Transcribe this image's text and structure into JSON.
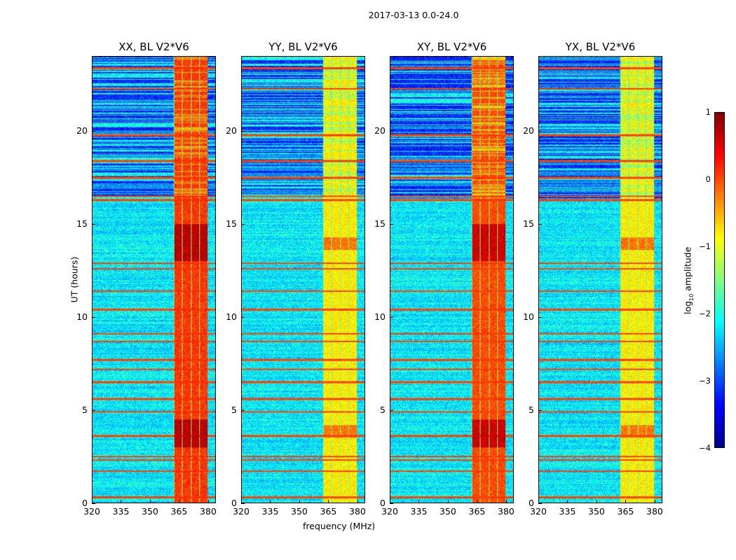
{
  "chart_data": {
    "type": "heatmap",
    "title": "2017-03-13 0.0-24.0",
    "xlabel": "frequency (MHz)",
    "ylabel": "UT (hours)",
    "xlim": [
      320,
      384
    ],
    "ylim": [
      0,
      24
    ],
    "xticks": [
      "320",
      "335",
      "350",
      "365",
      "380"
    ],
    "yticks": [
      "0",
      "5",
      "10",
      "15",
      "20"
    ],
    "colorbar": {
      "label": "log",
      "label_sub": "10",
      "label_tail": " amplitude",
      "range": [
        -4,
        1
      ],
      "ticks": [
        "1",
        "0",
        "−1",
        "−2",
        "−3",
        "−4"
      ],
      "colormap": "jet"
    },
    "rfi_band_mhz": [
      362,
      380
    ],
    "background_level": -2.2,
    "quiet_dark_hours": [
      16.4,
      24
    ],
    "horizontal_rfi_hours": [
      23.4,
      22.3,
      19.8,
      18.4,
      17.5,
      16.5,
      16.3,
      12.9,
      12.6,
      11.4,
      10.4,
      9.1,
      8.7,
      7.7,
      7.2,
      6.5,
      5.6,
      4.9,
      3.6,
      2.5,
      2.3,
      1.7,
      0.3
    ],
    "panels": [
      {
        "title": "XX, BL V2*V6",
        "band_level": 0.1,
        "strong_hours": [
          [
            13,
            15
          ],
          [
            3,
            4.5
          ]
        ]
      },
      {
        "title": "YY, BL V2*V6",
        "band_level": -0.8,
        "strong_hours": [
          [
            13.6,
            14.3
          ],
          [
            3.5,
            4.2
          ]
        ]
      },
      {
        "title": "XY, BL V2*V6",
        "band_level": 0.0,
        "strong_hours": [
          [
            13,
            15
          ],
          [
            3,
            4.5
          ]
        ]
      },
      {
        "title": "YX, BL V2*V6",
        "band_level": -0.8,
        "strong_hours": [
          [
            13.6,
            14.3
          ],
          [
            3.5,
            4.2
          ]
        ]
      }
    ]
  }
}
